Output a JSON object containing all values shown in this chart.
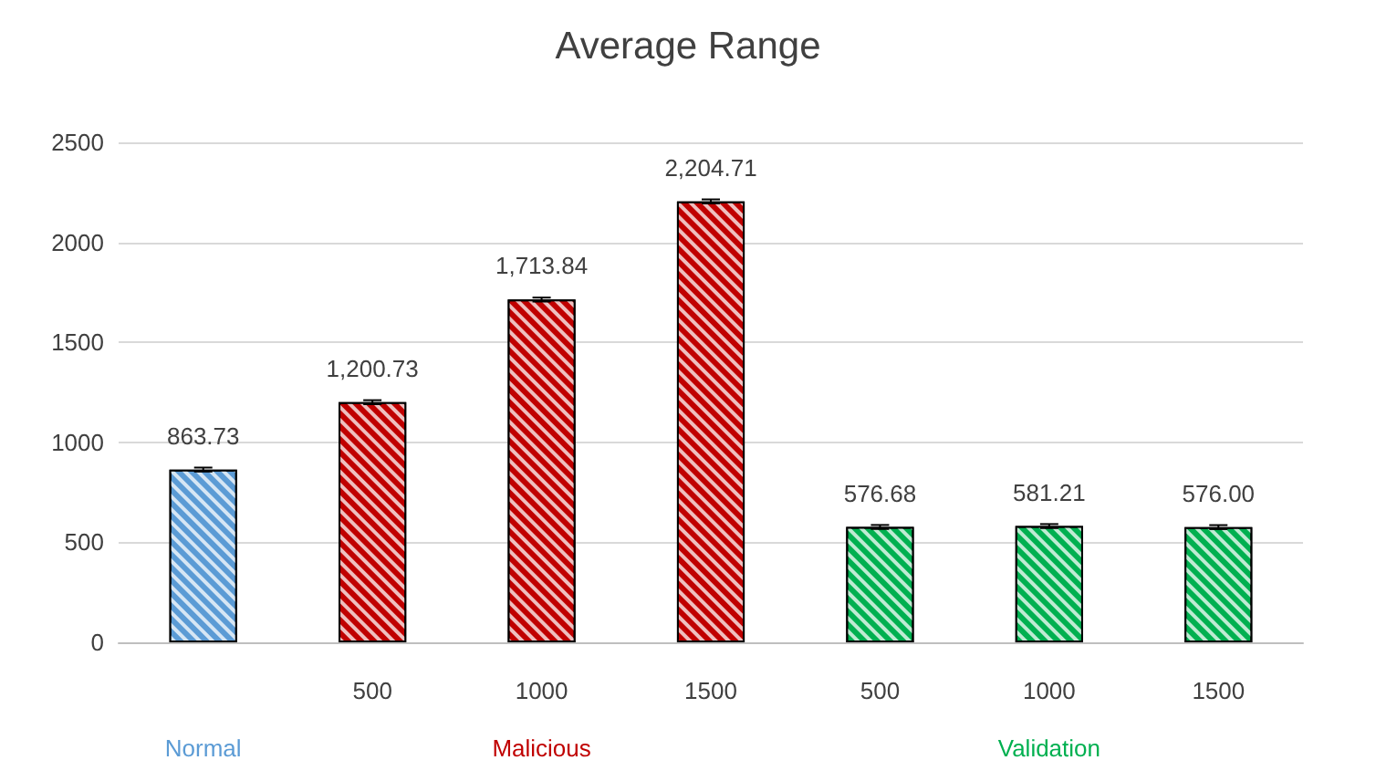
{
  "chart_data": {
    "type": "bar",
    "title": "Average Range",
    "categories": [
      null,
      "500",
      "1000",
      "1500",
      "500",
      "1000",
      "1500"
    ],
    "series": [
      {
        "name": "Normal",
        "color": "#5b9bd5",
        "values": [
          863.73,
          null,
          null,
          null,
          null,
          null,
          null
        ],
        "errors": [
          10,
          null,
          null,
          null,
          null,
          null,
          null
        ],
        "value_labels": [
          "863.73",
          null,
          null,
          null,
          null,
          null,
          null
        ]
      },
      {
        "name": "Malicious",
        "color": "#c00000",
        "values": [
          null,
          1200.73,
          1713.84,
          2204.71,
          null,
          null,
          null
        ],
        "errors": [
          null,
          10,
          10,
          10,
          null,
          null,
          null
        ],
        "value_labels": [
          null,
          "1,200.73",
          "1,713.84",
          "2,204.71",
          null,
          null,
          null
        ]
      },
      {
        "name": "Validation",
        "color": "#00b050",
        "values": [
          null,
          null,
          null,
          null,
          576.68,
          581.21,
          576.0
        ],
        "errors": [
          null,
          null,
          null,
          null,
          10,
          10,
          10
        ],
        "value_labels": [
          null,
          null,
          null,
          null,
          "576.68",
          "581.21",
          "576.00"
        ]
      }
    ],
    "ylim": [
      0,
      2500
    ],
    "yticks": [
      0,
      500,
      1000,
      1500,
      2000,
      2500
    ],
    "grid": "y"
  }
}
